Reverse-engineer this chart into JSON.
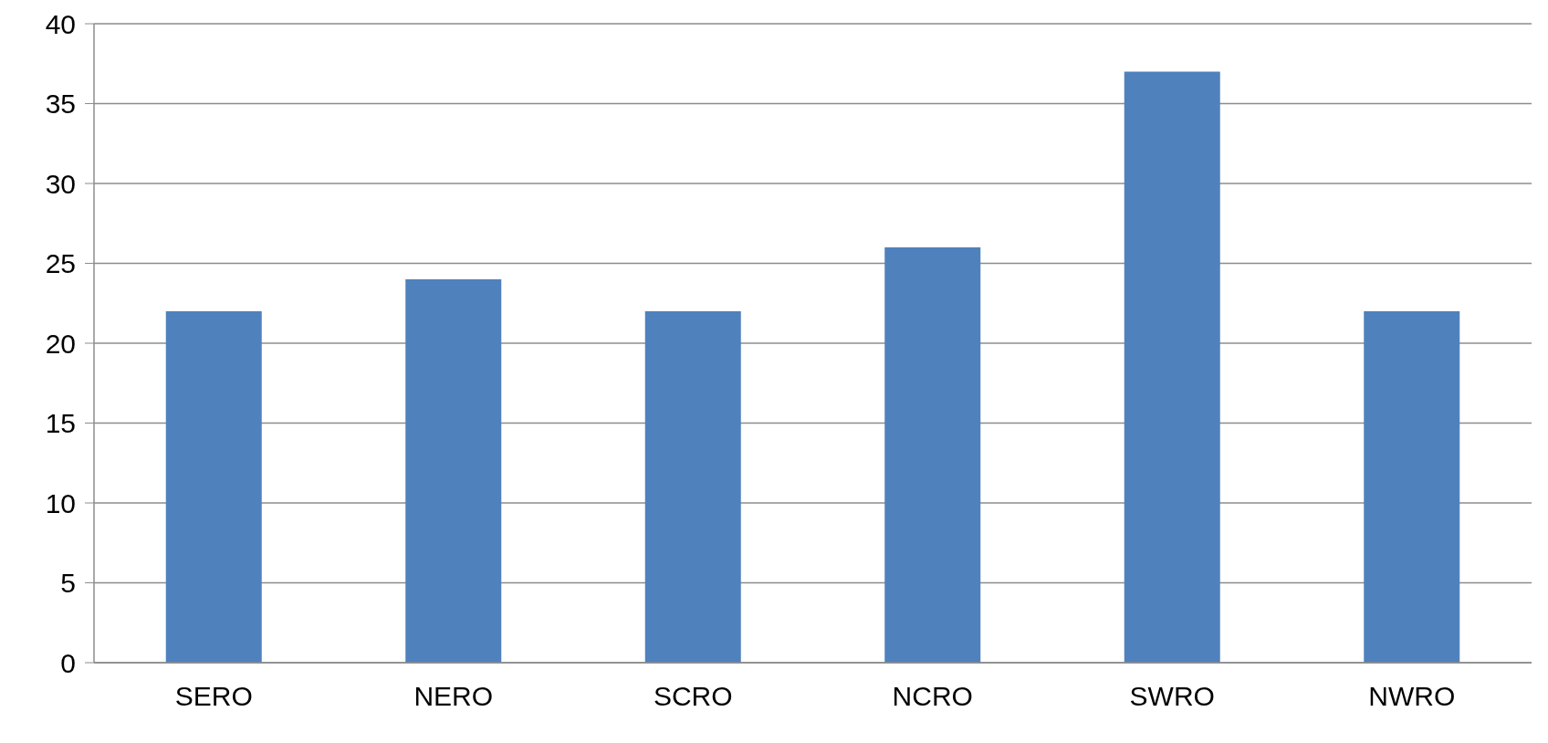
{
  "chart_data": {
    "type": "bar",
    "categories": [
      "SERO",
      "NERO",
      "SCRO",
      "NCRO",
      "SWRO",
      "NWRO"
    ],
    "values": [
      22,
      24,
      22,
      26,
      37,
      22
    ],
    "color": "#4f81bd",
    "ylim": [
      0,
      40
    ],
    "yticks": [
      0,
      5,
      10,
      15,
      20,
      25,
      30,
      35,
      40
    ],
    "grid": "y",
    "legend": false
  }
}
